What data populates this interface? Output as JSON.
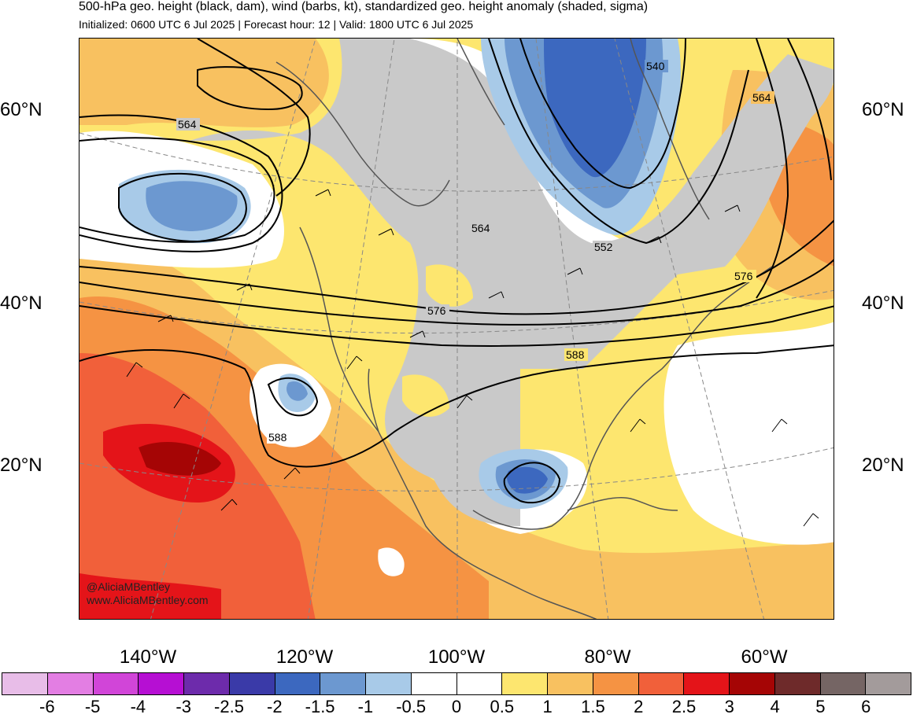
{
  "header": {
    "title": "500-hPa geo. height (black, dam), wind (barbs, kt), standardized geo. height anomaly (shaded, sigma)",
    "subtitle": "Initialized: 0600 UTC 6 Jul 2025 | Forecast hour: 12 | Valid: 1800 UTC 6 Jul 2025"
  },
  "map": {
    "lat_labels_left": [
      "60°N",
      "40°N",
      "20°N"
    ],
    "lat_labels_right": [
      "60°N",
      "40°N",
      "20°N"
    ],
    "lon_labels": [
      "140°W",
      "120°W",
      "100°W",
      "80°W",
      "60°W"
    ],
    "contour_labels": [
      "540",
      "564",
      "564",
      "564",
      "552",
      "576",
      "576",
      "588",
      "588"
    ],
    "credit_handle": "@AliciaMBentley",
    "credit_site": "www.AliciaMBentley.com"
  },
  "colorbar": {
    "colors": [
      "#e8bde8",
      "#e37ee3",
      "#d145d8",
      "#b60fd3",
      "#6d2bab",
      "#3a3aa8",
      "#3c68bf",
      "#6c98d0",
      "#a8cae8",
      "#ffffff",
      "#ffffff",
      "#fde66f",
      "#f8c160",
      "#f59343",
      "#f1603a",
      "#e41419",
      "#a50505",
      "#6e2a2a",
      "#756564",
      "#a39b9b"
    ],
    "labels": [
      "-6",
      "-5",
      "-4",
      "-3",
      "-2.5",
      "-2",
      "-1.5",
      "-1",
      "-0.5",
      "0",
      "0.5",
      "1",
      "1.5",
      "2",
      "2.5",
      "3",
      "4",
      "5",
      "6"
    ]
  }
}
